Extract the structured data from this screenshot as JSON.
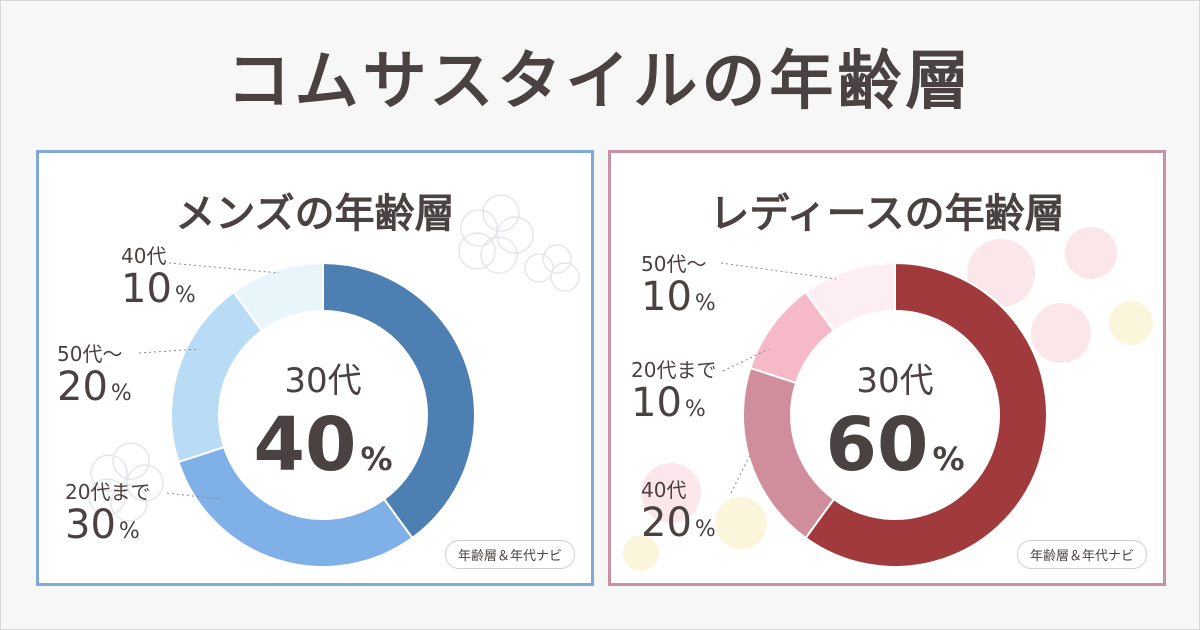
{
  "title": "コムサスタイルの年齢層",
  "badge_text": "年齢層＆年代ナビ",
  "chart_data": [
    {
      "type": "pie",
      "title": "メンズの年齢層",
      "center": {
        "category": "30代",
        "value": "40",
        "unit": "%"
      },
      "slices": [
        {
          "label": "30代",
          "value": 40,
          "color": "#4e7fb3"
        },
        {
          "label": "20代まで",
          "value": 30,
          "color": "#7fb0e8"
        },
        {
          "label": "50代〜",
          "value": 20,
          "color": "#b8dcf6"
        },
        {
          "label": "40代",
          "value": 10,
          "color": "#e8f6fb"
        }
      ],
      "labels": [
        {
          "category": "40代",
          "value": "10",
          "unit": "%"
        },
        {
          "category": "50代〜",
          "value": "20",
          "unit": "%"
        },
        {
          "category": "20代まで",
          "value": "30",
          "unit": "%"
        }
      ]
    },
    {
      "type": "pie",
      "title": "レディースの年齢層",
      "center": {
        "category": "30代",
        "value": "60",
        "unit": "%"
      },
      "slices": [
        {
          "label": "30代",
          "value": 60,
          "color": "#a03a3d"
        },
        {
          "label": "40代",
          "value": 20,
          "color": "#d08e9c"
        },
        {
          "label": "20代まで",
          "value": 10,
          "color": "#f6b9c8"
        },
        {
          "label": "50代〜",
          "value": 10,
          "color": "#fdeef3"
        }
      ],
      "labels": [
        {
          "category": "50代〜",
          "value": "10",
          "unit": "%"
        },
        {
          "category": "20代まで",
          "value": "10",
          "unit": "%"
        },
        {
          "category": "40代",
          "value": "20",
          "unit": "%"
        }
      ]
    }
  ]
}
